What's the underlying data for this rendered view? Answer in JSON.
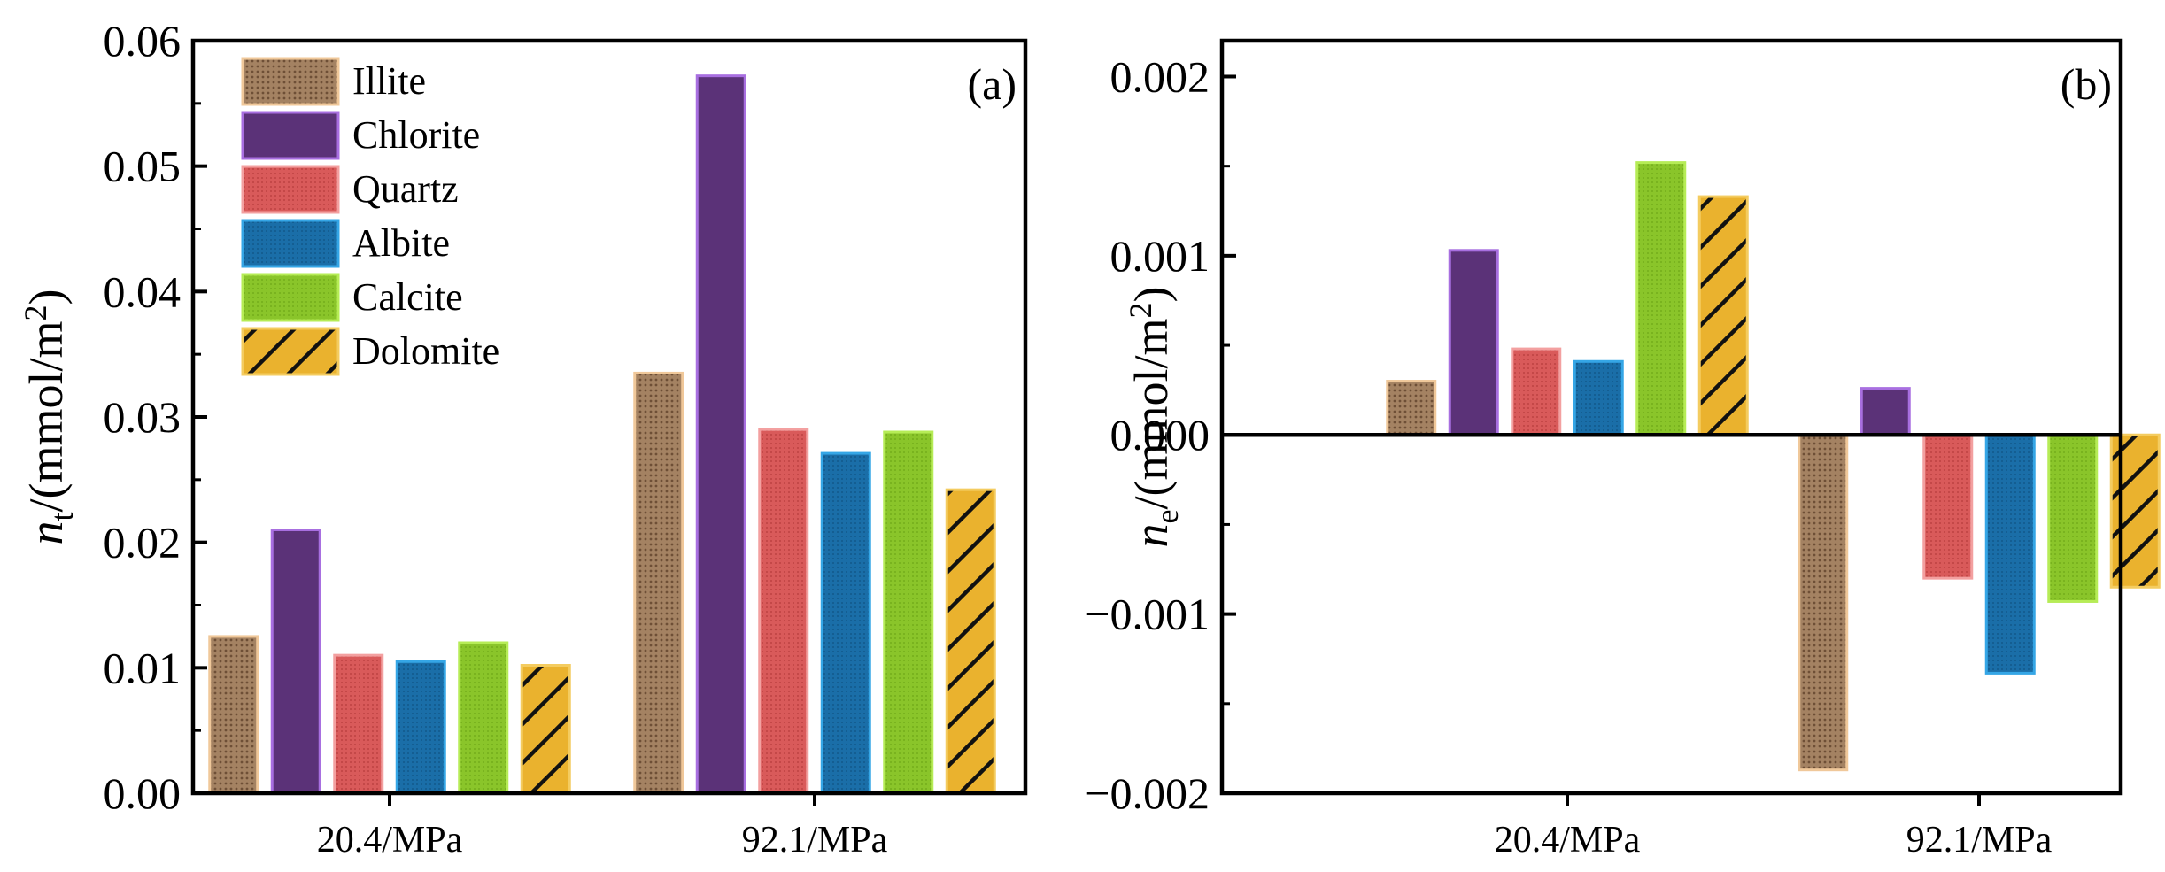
{
  "chart_data": [
    {
      "type": "bar",
      "panel_label": "(a)",
      "ylabel_symbol": "n",
      "ylabel_sub": "t",
      "ylabel_rest": "/(mmol/m",
      "ylabel_sup": "2",
      "ylabel_close": ")",
      "categories": [
        "20.4/MPa",
        "92.1/MPa"
      ],
      "ylim": [
        0,
        0.06
      ],
      "yticks": [
        0.0,
        0.01,
        0.02,
        0.03,
        0.04,
        0.05,
        0.06
      ],
      "ytick_labels": [
        "0.00",
        "0.01",
        "0.02",
        "0.03",
        "0.04",
        "0.05",
        "0.06"
      ],
      "legend_position": "top-left",
      "series": [
        {
          "name": "Illite",
          "values": [
            0.0125,
            0.0335
          ]
        },
        {
          "name": "Chlorite",
          "values": [
            0.021,
            0.0572
          ]
        },
        {
          "name": "Quartz",
          "values": [
            0.011,
            0.029
          ]
        },
        {
          "name": "Albite",
          "values": [
            0.0105,
            0.0271
          ]
        },
        {
          "name": "Calcite",
          "values": [
            0.012,
            0.0288
          ]
        },
        {
          "name": "Dolomite",
          "values": [
            0.0102,
            0.0242
          ]
        }
      ]
    },
    {
      "type": "bar",
      "panel_label": "(b)",
      "ylabel_symbol": "n",
      "ylabel_sub": "e",
      "ylabel_rest": "/(mmol/m",
      "ylabel_sup": "2",
      "ylabel_close": ")",
      "categories": [
        "20.4/MPa",
        "92.1/MPa"
      ],
      "ylim": [
        -0.002,
        0.0022
      ],
      "yticks": [
        -0.002,
        -0.001,
        0.0,
        0.001,
        0.002
      ],
      "ytick_labels": [
        "−0.002",
        "−0.001",
        "0.000",
        "0.001",
        "0.002"
      ],
      "series": [
        {
          "name": "Illite",
          "values": [
            0.0003,
            -0.00187
          ]
        },
        {
          "name": "Chlorite",
          "values": [
            0.00103,
            0.00026
          ]
        },
        {
          "name": "Quartz",
          "values": [
            0.00048,
            -0.0008
          ]
        },
        {
          "name": "Albite",
          "values": [
            0.00041,
            -0.00133
          ]
        },
        {
          "name": "Calcite",
          "values": [
            0.00152,
            -0.00093
          ]
        },
        {
          "name": "Dolomite",
          "values": [
            0.00133,
            -0.00085
          ]
        }
      ]
    }
  ],
  "series_styles": [
    {
      "name": "Illite",
      "fill": "#a07d5e",
      "stroke": "#f0c89a",
      "pattern": "dots"
    },
    {
      "name": "Chlorite",
      "fill": "#5b3278",
      "stroke": "#a86fe0",
      "pattern": "none"
    },
    {
      "name": "Quartz",
      "fill": "#d95a5a",
      "stroke": "#f3a0a0",
      "pattern": "fine"
    },
    {
      "name": "Albite",
      "fill": "#1a6ea8",
      "stroke": "#35a6e6",
      "pattern": "fine"
    },
    {
      "name": "Calcite",
      "fill": "#8ac52a",
      "stroke": "#b6ec56",
      "pattern": "fine"
    },
    {
      "name": "Dolomite",
      "fill": "#eab22e",
      "stroke": "#f4cc60",
      "pattern": "hatch"
    }
  ]
}
